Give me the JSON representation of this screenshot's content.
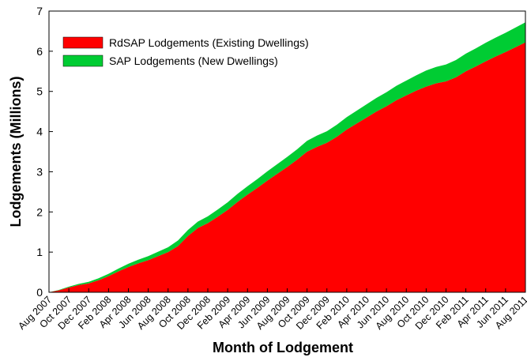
{
  "chart_data": {
    "type": "stacked_area",
    "x_label": "Month of Lodgement",
    "y_label": "Lodgements (Millions)",
    "categories": [
      "Aug 2007",
      null,
      "Oct 2007",
      null,
      "Dec 2007",
      null,
      "Feb 2008",
      null,
      "Apr 2008",
      null,
      "Jun 2008",
      null,
      "Aug 2008",
      null,
      "Oct 2008",
      null,
      "Dec 2008",
      null,
      "Feb 2009",
      null,
      "Apr 2009",
      null,
      "Jun 2009",
      null,
      "Aug 2009",
      null,
      "Oct 2009",
      null,
      "Dec 2009",
      null,
      "Feb 2010",
      null,
      "Apr 2010",
      null,
      "Jun 2010",
      null,
      "Aug 2010",
      null,
      "Oct 2010",
      null,
      "Dec 2010",
      null,
      "Feb 2011",
      null,
      "Apr 2011",
      null,
      "Jun 2011",
      null,
      "Aug 2011"
    ],
    "series": [
      {
        "name": "RdSAP Lodgements (Existing Dwellings)",
        "color": "#ff0000",
        "values": [
          0,
          0.05,
          0.12,
          0.18,
          0.22,
          0.3,
          0.4,
          0.52,
          0.63,
          0.72,
          0.8,
          0.9,
          1.0,
          1.15,
          1.4,
          1.6,
          1.72,
          1.88,
          2.05,
          2.25,
          2.43,
          2.6,
          2.78,
          2.95,
          3.12,
          3.3,
          3.5,
          3.62,
          3.72,
          3.87,
          4.05,
          4.2,
          4.35,
          4.5,
          4.63,
          4.78,
          4.9,
          5.02,
          5.12,
          5.2,
          5.25,
          5.35,
          5.5,
          5.62,
          5.75,
          5.87,
          5.98,
          6.1,
          6.22
        ]
      },
      {
        "name": "SAP Lodgements (New Dwellings)",
        "color": "#00cc33",
        "values": [
          0,
          0.01,
          0.02,
          0.03,
          0.04,
          0.05,
          0.06,
          0.07,
          0.08,
          0.09,
          0.1,
          0.11,
          0.12,
          0.14,
          0.15,
          0.16,
          0.17,
          0.18,
          0.19,
          0.2,
          0.21,
          0.22,
          0.23,
          0.24,
          0.25,
          0.26,
          0.27,
          0.28,
          0.29,
          0.3,
          0.31,
          0.32,
          0.33,
          0.34,
          0.35,
          0.36,
          0.37,
          0.38,
          0.4,
          0.41,
          0.42,
          0.43,
          0.44,
          0.45,
          0.46,
          0.47,
          0.48,
          0.49,
          0.5
        ]
      }
    ],
    "ylim": [
      0,
      7
    ],
    "yticks": [
      0,
      1,
      2,
      3,
      4,
      5,
      6,
      7
    ],
    "legend": "upper-left",
    "grid": false
  }
}
